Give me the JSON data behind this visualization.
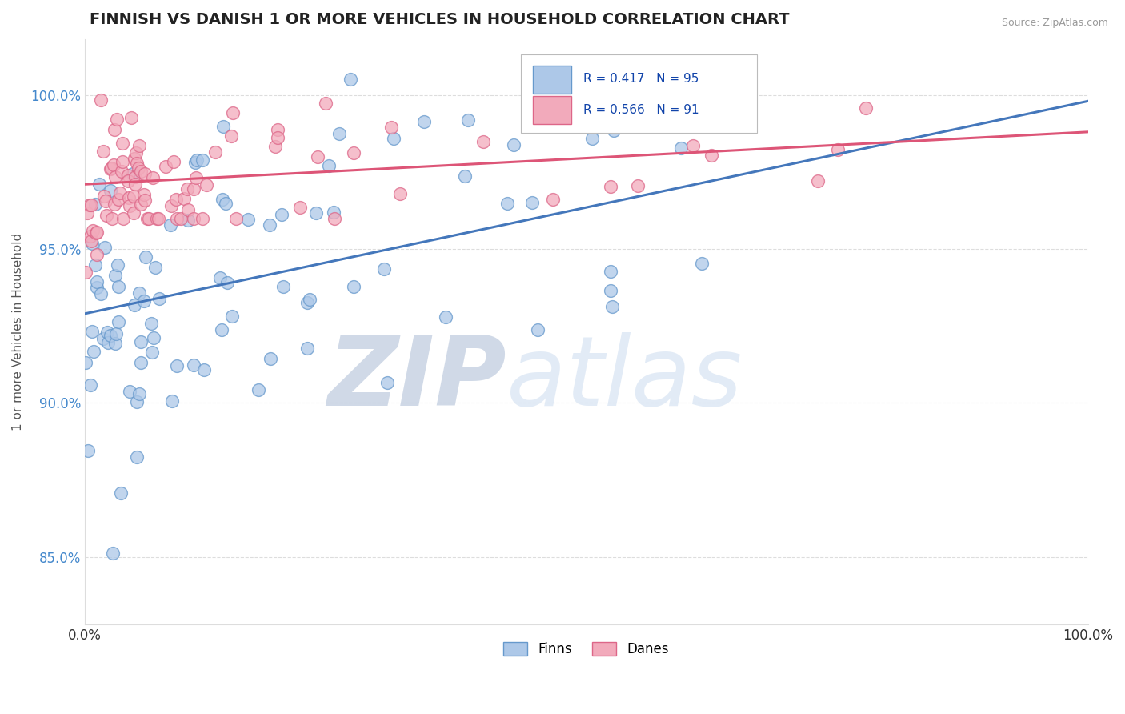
{
  "title": "FINNISH VS DANISH 1 OR MORE VEHICLES IN HOUSEHOLD CORRELATION CHART",
  "source": "Source: ZipAtlas.com",
  "ylabel": "1 or more Vehicles in Household",
  "xlim": [
    0.0,
    1.0
  ],
  "ylim": [
    0.828,
    1.018
  ],
  "yticks": [
    0.85,
    0.9,
    0.95,
    1.0
  ],
  "ytick_labels": [
    "85.0%",
    "90.0%",
    "95.0%",
    "100.0%"
  ],
  "xtick_labels": [
    "0.0%",
    "100.0%"
  ],
  "xticks": [
    0.0,
    1.0
  ],
  "R_finns": 0.417,
  "N_finns": 95,
  "R_danes": 0.566,
  "N_danes": 91,
  "finns_color": "#adc8e8",
  "danes_color": "#f2aabb",
  "finns_edge_color": "#6699cc",
  "danes_edge_color": "#dd6688",
  "finns_line_color": "#4477bb",
  "danes_line_color": "#dd5577",
  "watermark_zip_color": "#b8cfe8",
  "watermark_atlas_color": "#c8ddf0",
  "legend_finns": "Finns",
  "legend_danes": "Danes",
  "title_fontsize": 14,
  "background_color": "#ffffff",
  "grid_color": "#dddddd",
  "ytick_color": "#4488cc",
  "xtick_color": "#333333"
}
